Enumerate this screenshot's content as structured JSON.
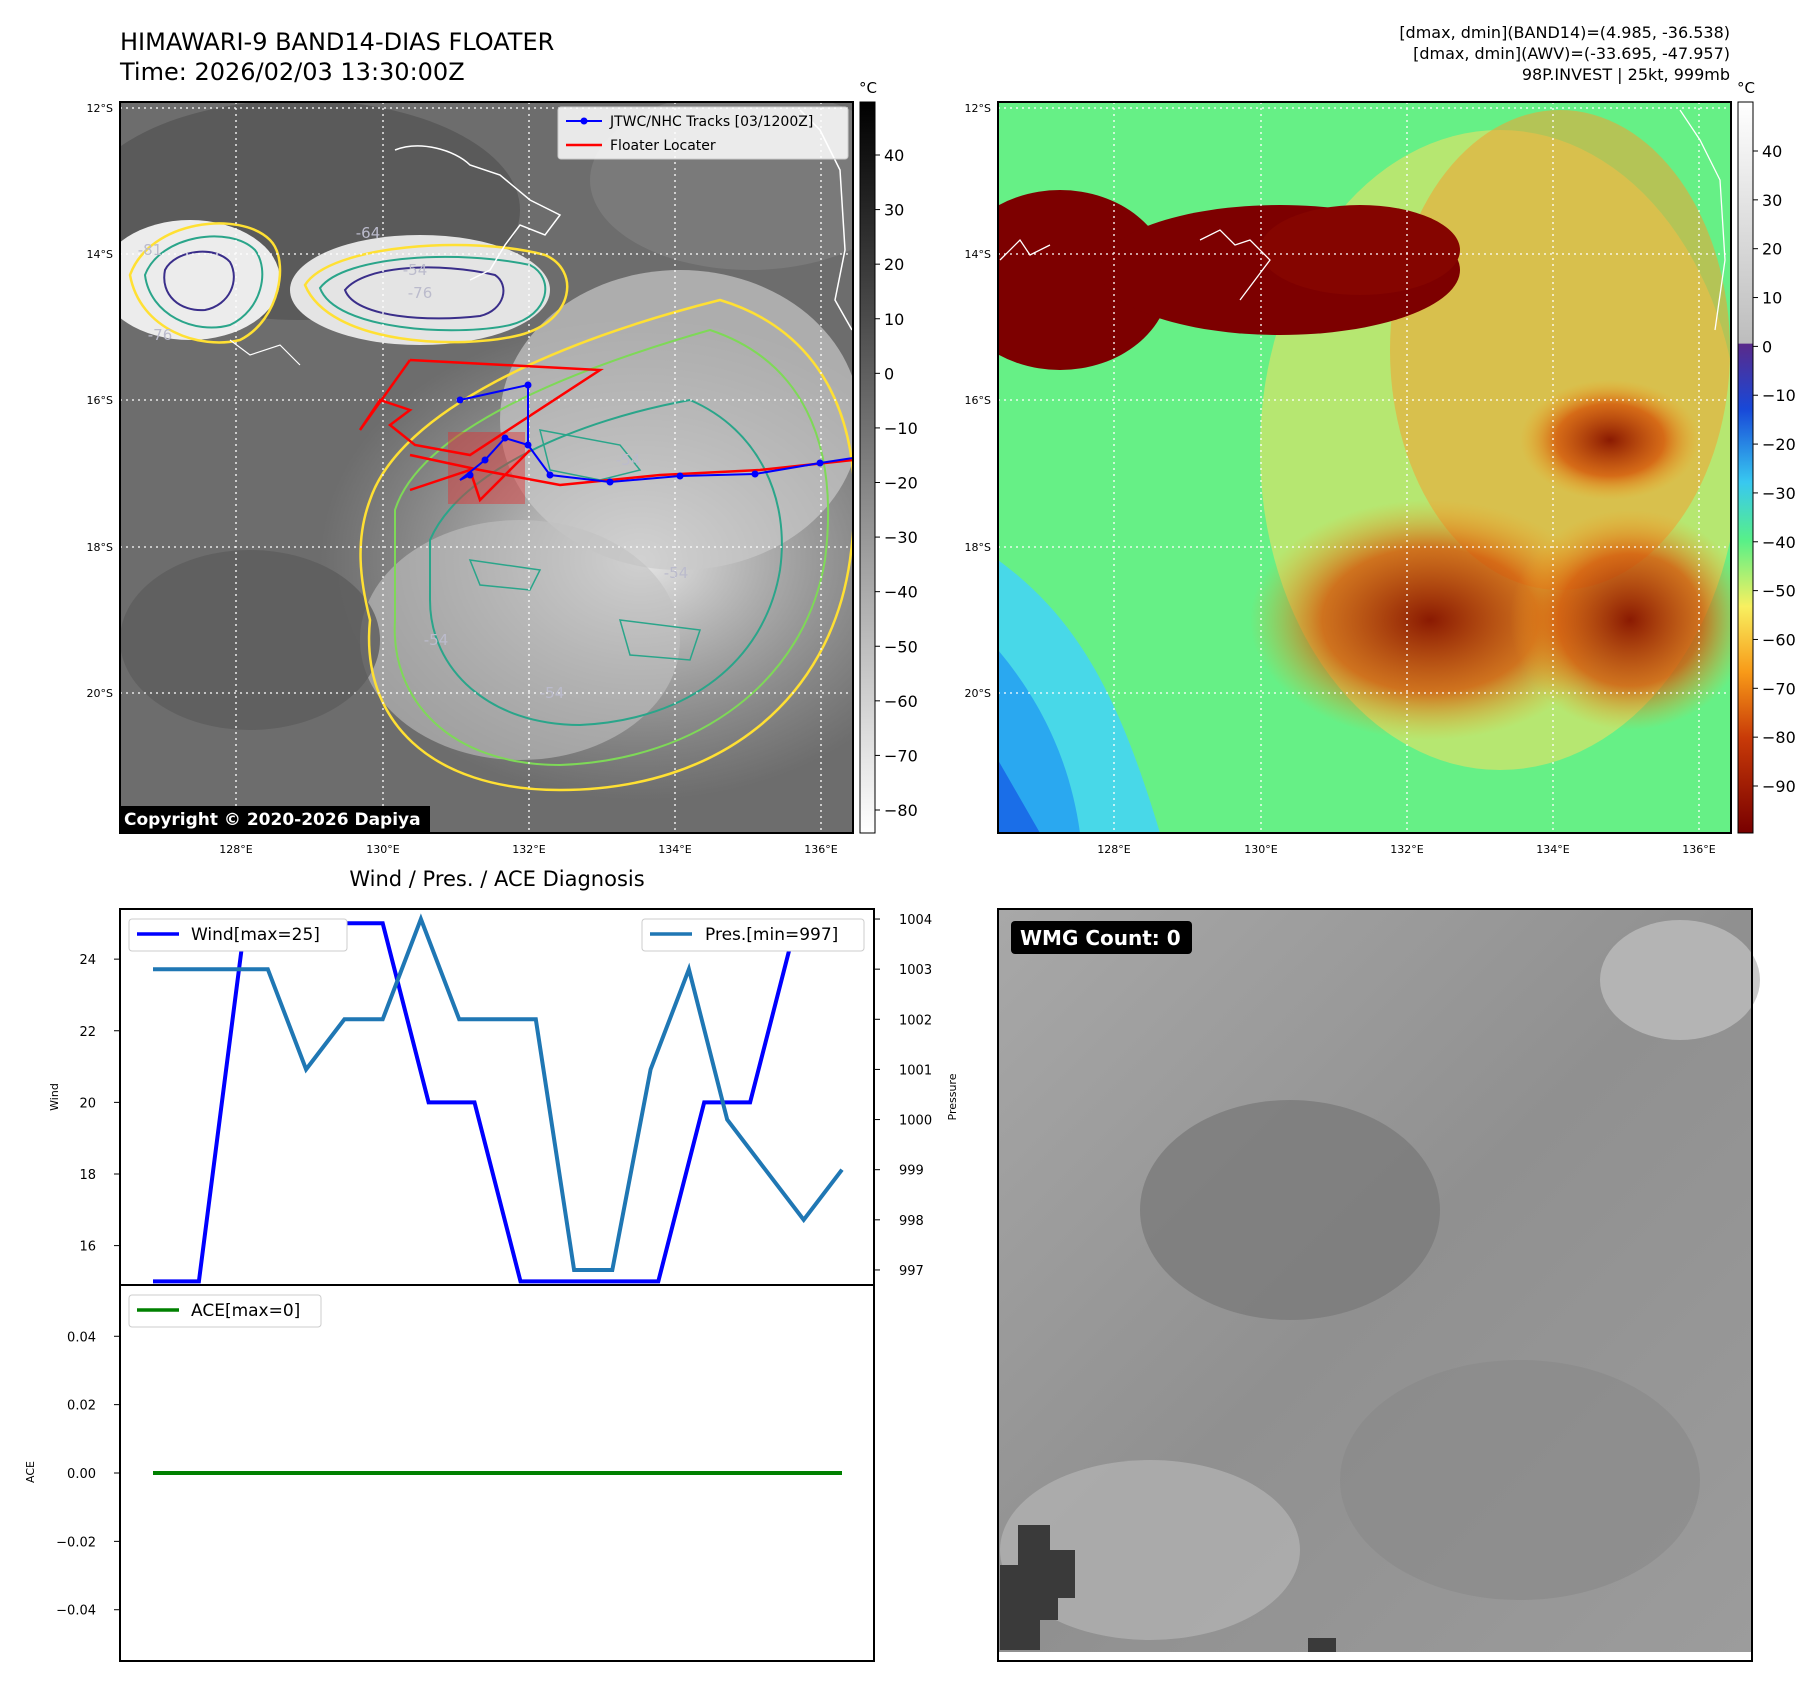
{
  "header": {
    "title_line1": "HIMAWARI-9 BAND14-DIAS FLOATER",
    "title_line2": "Time: 2026/02/03 13:30:00Z",
    "info_line1": "[dmax, dmin](BAND14)=(4.985, -36.538)",
    "info_line2": "[dmax, dmin](AWV)=(-33.695, -47.957)",
    "info_line3": "98P.INVEST | 25kt, 999mb"
  },
  "copyright": "Copyright © 2020-2026 Dapiya",
  "map": {
    "lon_ticks": [
      "128°E",
      "130°E",
      "132°E",
      "134°E",
      "136°E"
    ],
    "lat_ticks": [
      "12°S",
      "14°S",
      "16°S",
      "18°S",
      "20°S"
    ],
    "lon_range": [
      126.4,
      136.4
    ],
    "lat_range": [
      -12,
      -22
    ],
    "contour_labels": [
      "-81",
      "-76",
      "-64",
      "-76",
      "-54",
      "-54",
      "-54",
      "-54",
      "-54"
    ],
    "legend": {
      "tracks": "JTWC/NHC Tracks [03/1200Z]",
      "floater": "Floater Locater"
    },
    "tracks_color": "#0000ff",
    "floater_color": "#ff0000"
  },
  "colorbar_left": {
    "unit": "°C",
    "ticks": [
      "40",
      "30",
      "20",
      "10",
      "0",
      "−10",
      "−20",
      "−30",
      "−40",
      "−50",
      "−60",
      "−70",
      "−80"
    ]
  },
  "colorbar_right": {
    "unit": "°C",
    "ticks": [
      "40",
      "30",
      "20",
      "10",
      "0",
      "−10",
      "−20",
      "−30",
      "−40",
      "−50",
      "−60",
      "−70",
      "−80",
      "−90"
    ]
  },
  "diag_title": "Wind / Pres. / ACE Diagnosis",
  "wmg": {
    "label": "WMG Count: 0"
  },
  "chart_data": [
    {
      "type": "line",
      "title": "Wind / Pres. / ACE Diagnosis",
      "ylabel": "Wind",
      "y2label": "Pressure",
      "ylim": [
        14.9,
        25.4
      ],
      "y2lim": [
        996.7,
        1004.2
      ],
      "yticks": [
        "16",
        "18",
        "20",
        "22",
        "24"
      ],
      "y2ticks": [
        "997",
        "998",
        "999",
        "1000",
        "1001",
        "1002",
        "1003",
        "1004"
      ],
      "series": [
        {
          "name": "Wind[max=25]",
          "color": "#0000ff",
          "axis": "left",
          "values": [
            15,
            15,
            25,
            25,
            25,
            25,
            20,
            20,
            15,
            15,
            15,
            15,
            20,
            20,
            25,
            25
          ]
        },
        {
          "name": "Pres.[min=997]",
          "color": "#1f77b4",
          "axis": "right",
          "values": [
            1003,
            1003,
            1003,
            1003,
            1001,
            1002,
            1002,
            1004,
            1002,
            1002,
            1002,
            997,
            997,
            1001,
            1003,
            1000,
            999,
            998,
            999
          ]
        }
      ]
    },
    {
      "type": "line",
      "ylabel": "ACE",
      "ylim": [
        -0.055,
        0.055
      ],
      "yticks": [
        "0.04",
        "0.02",
        "0.00",
        "−0.02",
        "−0.04"
      ],
      "series": [
        {
          "name": "ACE[max=0]",
          "color": "#008000",
          "values": [
            0,
            0
          ]
        }
      ]
    }
  ]
}
